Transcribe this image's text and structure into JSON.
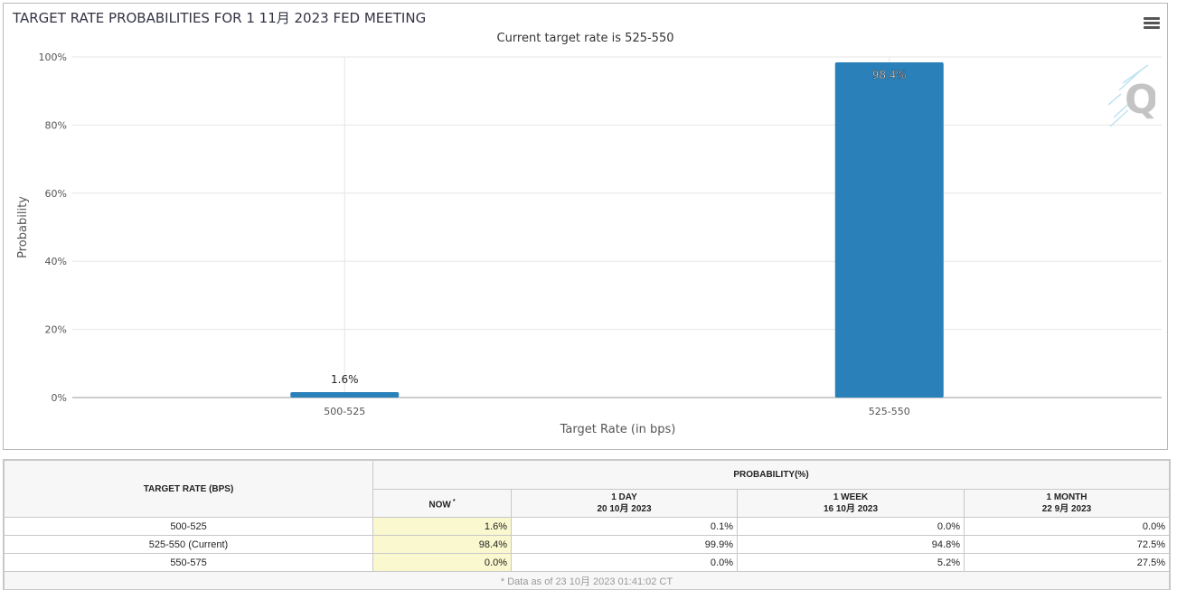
{
  "chart_data": {
    "type": "bar",
    "title": "TARGET RATE PROBABILITIES FOR 1 11月 2023 FED MEETING",
    "subtitle": "Current target rate is 525-550",
    "categories": [
      "500-525",
      "525-550"
    ],
    "values": [
      1.6,
      98.4
    ],
    "data_labels": [
      "1.6%",
      "98.4%"
    ],
    "xlabel": "Target Rate (in bps)",
    "ylabel": "Probability",
    "ylim": [
      0,
      100
    ],
    "y_ticks": [
      "0%",
      "20%",
      "40%",
      "60%",
      "80%",
      "100%"
    ],
    "y_tick_values": [
      0,
      20,
      40,
      60,
      80,
      100
    ],
    "grid": true,
    "legend": "none",
    "bar_color": "#2a80b9"
  },
  "toolbar": {
    "menu_icon": "hamburger-menu-icon"
  },
  "watermark": {
    "icon": "quikstrike-q-logo-icon"
  },
  "table": {
    "rate_header": "TARGET RATE (BPS)",
    "prob_header": "PROBABILITY(%)",
    "columns": [
      {
        "label": "NOW",
        "marker": "*",
        "date": ""
      },
      {
        "label": "1 DAY",
        "date": "20 10月 2023"
      },
      {
        "label": "1 WEEK",
        "date": "16 10月 2023"
      },
      {
        "label": "1 MONTH",
        "date": "22 9月 2023"
      }
    ],
    "rows": [
      {
        "rate": "500-525",
        "now": "1.6%",
        "day": "0.1%",
        "week": "0.0%",
        "month": "0.0%"
      },
      {
        "rate": "525-550 (Current)",
        "now": "98.4%",
        "day": "99.9%",
        "week": "94.8%",
        "month": "72.5%"
      },
      {
        "rate": "550-575",
        "now": "0.0%",
        "day": "0.0%",
        "week": "5.2%",
        "month": "27.5%"
      }
    ],
    "footnote": "* Data as of 23 10月 2023 01:41:02 CT"
  }
}
